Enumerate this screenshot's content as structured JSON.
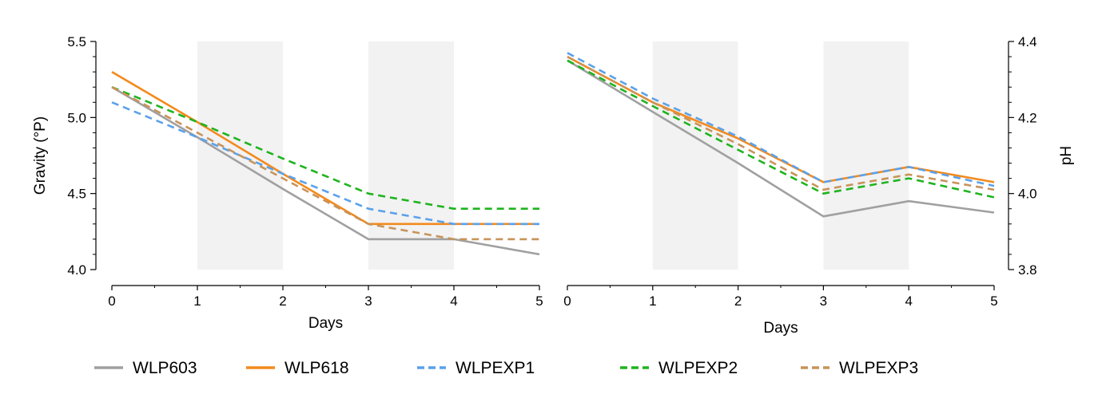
{
  "chart_data": [
    {
      "type": "line",
      "panel": "left",
      "xlabel": "Days",
      "ylabel": "Gravity (°P)",
      "x": [
        0,
        1,
        2,
        3,
        4,
        5
      ],
      "xlim": [
        0,
        5
      ],
      "ylim": [
        4.0,
        5.5
      ],
      "x_ticks": [
        "0",
        "1",
        "2",
        "3",
        "4",
        "5"
      ],
      "y_ticks": [
        "4.0",
        "4.5",
        "5.0",
        "5.5"
      ],
      "y_axis_side": "left",
      "shaded_x_ranges": [
        [
          1,
          2
        ],
        [
          3,
          4
        ]
      ],
      "series": [
        {
          "name": "WLP603",
          "values": [
            5.2,
            4.87,
            4.53,
            4.2,
            4.2,
            4.1
          ]
        },
        {
          "name": "WLP618",
          "values": [
            5.3,
            4.97,
            4.63,
            4.3,
            4.3,
            4.3
          ]
        },
        {
          "name": "WLPEXP1",
          "values": [
            5.1,
            4.87,
            4.63,
            4.4,
            4.3,
            4.3
          ]
        },
        {
          "name": "WLPEXP2",
          "values": [
            5.2,
            4.97,
            4.73,
            4.5,
            4.4,
            4.4
          ]
        },
        {
          "name": "WLPEXP3",
          "values": [
            5.2,
            4.9,
            4.6,
            4.3,
            4.2,
            4.2
          ]
        }
      ]
    },
    {
      "type": "line",
      "panel": "right",
      "xlabel": "Days",
      "ylabel": "pH",
      "x": [
        0,
        1,
        2,
        3,
        4,
        5
      ],
      "xlim": [
        0,
        5
      ],
      "ylim": [
        3.8,
        4.4
      ],
      "x_ticks": [
        "0",
        "1",
        "2",
        "3",
        "4",
        "5"
      ],
      "y_ticks": [
        "3.8",
        "4.0",
        "4.2",
        "4.4"
      ],
      "y_axis_side": "right",
      "shaded_x_ranges": [
        [
          1,
          2
        ],
        [
          3,
          4
        ]
      ],
      "series": [
        {
          "name": "WLP603",
          "values": [
            4.35,
            4.215,
            4.08,
            3.94,
            3.98,
            3.95
          ]
        },
        {
          "name": "WLP618",
          "values": [
            4.36,
            4.24,
            4.145,
            4.03,
            4.07,
            4.03
          ]
        },
        {
          "name": "WLPEXP1",
          "values": [
            4.37,
            4.25,
            4.15,
            4.03,
            4.07,
            4.02
          ]
        },
        {
          "name": "WLPEXP2",
          "values": [
            4.35,
            4.23,
            4.115,
            4.0,
            4.04,
            3.99
          ]
        },
        {
          "name": "WLPEXP3",
          "values": [
            4.36,
            4.24,
            4.13,
            4.01,
            4.05,
            4.01
          ]
        }
      ]
    }
  ],
  "legend": [
    {
      "name": "WLP603",
      "color": "#a0a0a0",
      "dash": "solid"
    },
    {
      "name": "WLP618",
      "color": "#f28a1e",
      "dash": "solid"
    },
    {
      "name": "WLPEXP1",
      "color": "#5aa1ea",
      "dash": "dashed"
    },
    {
      "name": "WLPEXP2",
      "color": "#1eb41e",
      "dash": "dashed"
    },
    {
      "name": "WLPEXP3",
      "color": "#c8935a",
      "dash": "dashed"
    }
  ],
  "colors": {
    "shade": "#f2f2f2",
    "axis": "#000000"
  }
}
